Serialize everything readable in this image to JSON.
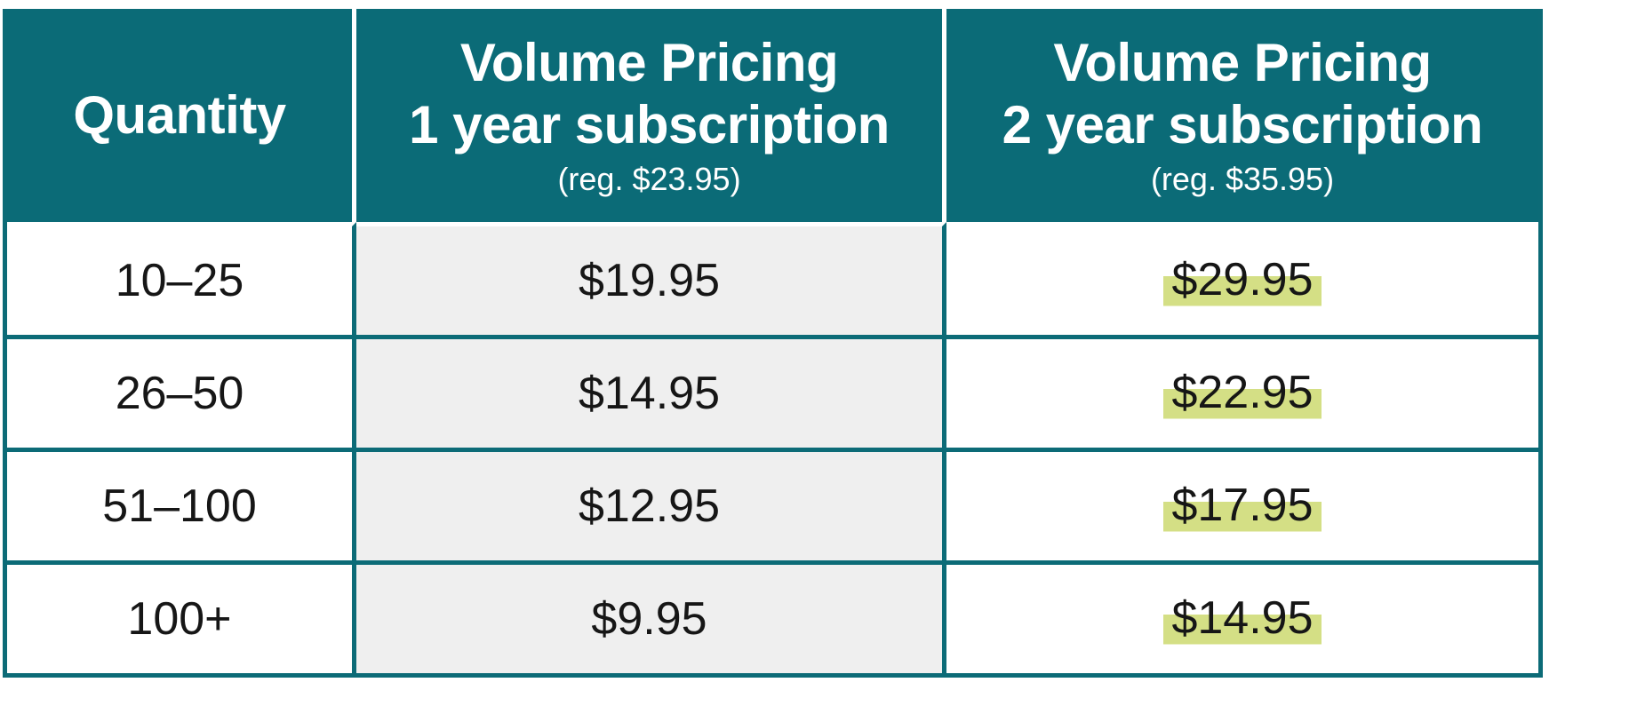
{
  "chart_data": {
    "type": "table",
    "title": "Volume Pricing",
    "columns": [
      "Quantity",
      "Volume Pricing 1 year subscription (reg. $23.95)",
      "Volume Pricing 2 year subscription (reg. $35.95)"
    ],
    "rows": [
      [
        "10–25",
        "$19.95",
        "$29.95"
      ],
      [
        "26–50",
        "$14.95",
        "$22.95"
      ],
      [
        "51–100",
        "$12.95",
        "$17.95"
      ],
      [
        "100+",
        "$9.95",
        "$14.95"
      ]
    ],
    "regular_prices": {
      "one_year": "$23.95",
      "two_year": "$35.95"
    },
    "highlighted_column": "Volume Pricing 2 year subscription"
  },
  "table": {
    "header": {
      "quantity": "Quantity",
      "col1_line1": "Volume Pricing",
      "col1_line2": "1 year subscription",
      "col1_reg": "(reg. $23.95)",
      "col2_line1": "Volume Pricing",
      "col2_line2": "2 year subscription",
      "col2_reg": "(reg. $35.95)"
    },
    "rows": [
      {
        "quantity": "10–25",
        "price_1yr": "$19.95",
        "price_2yr": "$29.95"
      },
      {
        "quantity": "26–50",
        "price_1yr": "$14.95",
        "price_2yr": "$22.95"
      },
      {
        "quantity": "51–100",
        "price_1yr": "$12.95",
        "price_2yr": "$17.95"
      },
      {
        "quantity": "100+",
        "price_1yr": "$9.95",
        "price_2yr": "$14.95"
      }
    ],
    "colors": {
      "header_bg": "#0b6b77",
      "border": "#0c6b77",
      "col2_bg": "#efefef",
      "highlight": "#d4df85",
      "body_text": "#161616"
    }
  }
}
